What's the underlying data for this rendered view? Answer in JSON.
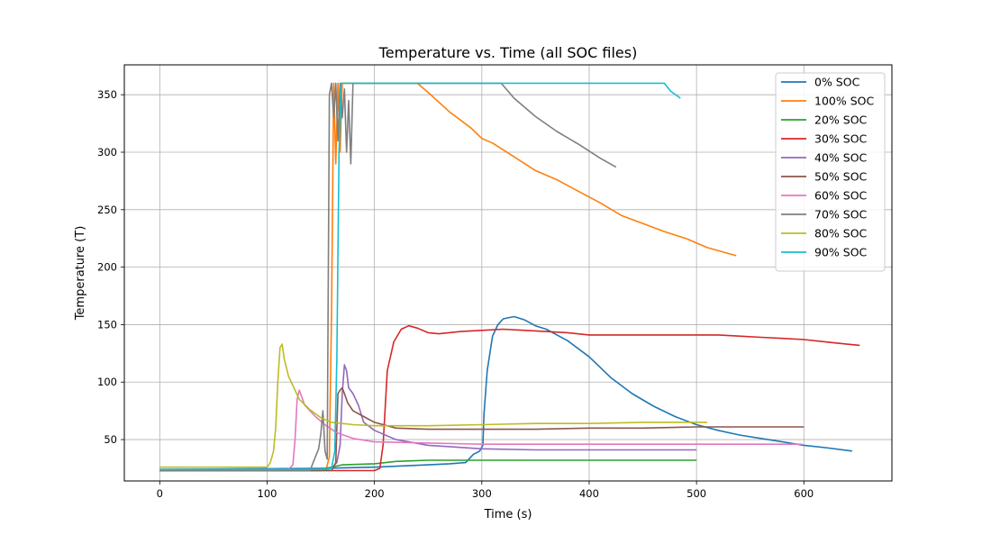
{
  "chart_data": {
    "type": "line",
    "title": "Temperature vs. Time (all SOC files)",
    "xlabel": "Time (s)",
    "ylabel": "Temperature (T)",
    "xlim": [
      -33,
      682
    ],
    "ylim": [
      14,
      376
    ],
    "xticks": [
      0,
      100,
      200,
      300,
      400,
      500,
      600
    ],
    "yticks": [
      50,
      100,
      150,
      200,
      250,
      300,
      350
    ],
    "grid": true,
    "legend_position": "top-right",
    "series": [
      {
        "name": "0% SOC",
        "color": "#1f77b4",
        "x": [
          0,
          150,
          200,
          250,
          270,
          285,
          292,
          298,
          301,
          302,
          305,
          310,
          315,
          320,
          330,
          340,
          350,
          360,
          380,
          400,
          420,
          440,
          460,
          480,
          500,
          520,
          540,
          560,
          580,
          600,
          620,
          645
        ],
        "y": [
          24,
          25,
          26,
          28,
          29,
          30,
          37,
          40,
          45,
          72,
          110,
          140,
          150,
          155,
          157,
          154,
          149,
          146,
          136,
          122,
          104,
          90,
          79,
          70,
          63,
          58,
          54,
          51,
          48,
          45,
          43,
          40
        ]
      },
      {
        "name": "100% SOC",
        "color": "#ff7f0e",
        "x": [
          0,
          150,
          155,
          158,
          160,
          162,
          164,
          166,
          168,
          170,
          240,
          250,
          270,
          290,
          300,
          310,
          330,
          350,
          370,
          390,
          410,
          430,
          450,
          470,
          490,
          510,
          537
        ],
        "y": [
          23,
          23,
          24,
          35,
          160,
          360,
          290,
          360,
          300,
          360,
          360,
          352,
          335,
          321,
          312,
          308,
          296,
          284,
          276,
          266,
          256,
          245,
          238,
          231,
          225,
          217,
          210
        ]
      },
      {
        "name": "20% SOC",
        "color": "#2ca02c",
        "x": [
          0,
          150,
          170,
          200,
          220,
          250,
          280,
          300,
          350,
          400,
          450,
          500
        ],
        "y": [
          23,
          24,
          28,
          29,
          31,
          32,
          32,
          32,
          32,
          32,
          32,
          32
        ]
      },
      {
        "name": "30% SOC",
        "color": "#d62728",
        "x": [
          0,
          150,
          200,
          205,
          208,
          212,
          218,
          225,
          232,
          240,
          250,
          260,
          280,
          300,
          320,
          340,
          360,
          380,
          400,
          420,
          440,
          460,
          480,
          500,
          520,
          540,
          560,
          580,
          600,
          620,
          640,
          652
        ],
        "y": [
          23,
          23,
          23,
          25,
          45,
          110,
          135,
          146,
          149,
          147,
          143,
          142,
          144,
          145,
          146,
          145,
          144,
          143,
          141,
          141,
          141,
          141,
          141,
          141,
          141,
          140,
          139,
          138,
          137,
          135,
          133,
          132
        ]
      },
      {
        "name": "40% SOC",
        "color": "#9467bd",
        "x": [
          0,
          150,
          160,
          165,
          168,
          170,
          172,
          174,
          176,
          180,
          185,
          190,
          200,
          220,
          250,
          300,
          350,
          400,
          450,
          500
        ],
        "y": [
          23,
          23,
          25,
          30,
          45,
          90,
          115,
          110,
          95,
          90,
          80,
          65,
          58,
          50,
          45,
          42,
          41,
          41,
          41,
          41
        ]
      },
      {
        "name": "50% SOC",
        "color": "#8c564b",
        "x": [
          0,
          160,
          164,
          166,
          168,
          170,
          172,
          175,
          180,
          190,
          200,
          220,
          250,
          300,
          350,
          400,
          450,
          500,
          550,
          600
        ],
        "y": [
          23,
          23,
          30,
          90,
          93,
          95,
          90,
          82,
          75,
          70,
          65,
          60,
          59,
          59,
          59,
          60,
          60,
          61,
          61,
          61
        ]
      },
      {
        "name": "60% SOC",
        "color": "#e377c2",
        "x": [
          0,
          120,
          124,
          126,
          128,
          130,
          135,
          145,
          155,
          165,
          180,
          200,
          250,
          300,
          350,
          400,
          450,
          500,
          550,
          598
        ],
        "y": [
          24,
          24,
          28,
          50,
          85,
          93,
          80,
          70,
          62,
          56,
          51,
          48,
          47,
          46,
          46,
          46,
          46,
          46,
          46,
          46
        ]
      },
      {
        "name": "70% SOC",
        "color": "#7f7f7f",
        "x": [
          0,
          140,
          145,
          148,
          150,
          152,
          154,
          156,
          158,
          160,
          162,
          164,
          166,
          168,
          170,
          172,
          174,
          176,
          178,
          180,
          300,
          318,
          330,
          350,
          370,
          390,
          410,
          425
        ],
        "y": [
          23,
          23,
          35,
          42,
          55,
          75,
          40,
          33,
          350,
          360,
          330,
          360,
          310,
          360,
          330,
          355,
          300,
          345,
          290,
          360,
          360,
          360,
          347,
          331,
          318,
          307,
          295,
          287
        ]
      },
      {
        "name": "80% SOC",
        "color": "#bcbd22",
        "x": [
          0,
          100,
          103,
          106,
          108,
          110,
          112,
          114,
          116,
          120,
          125,
          130,
          140,
          150,
          160,
          180,
          200,
          250,
          300,
          350,
          400,
          450,
          510
        ],
        "y": [
          26,
          26,
          30,
          40,
          60,
          100,
          130,
          133,
          120,
          105,
          95,
          85,
          76,
          69,
          65,
          63,
          62,
          62,
          63,
          64,
          64,
          65,
          65
        ]
      },
      {
        "name": "90% SOC",
        "color": "#17becf",
        "x": [
          0,
          150,
          160,
          163,
          165,
          167,
          169,
          172,
          175,
          200,
          300,
          400,
          470,
          476,
          485
        ],
        "y": [
          24,
          24,
          25,
          40,
          120,
          300,
          360,
          360,
          360,
          360,
          360,
          360,
          360,
          353,
          347
        ]
      }
    ]
  }
}
